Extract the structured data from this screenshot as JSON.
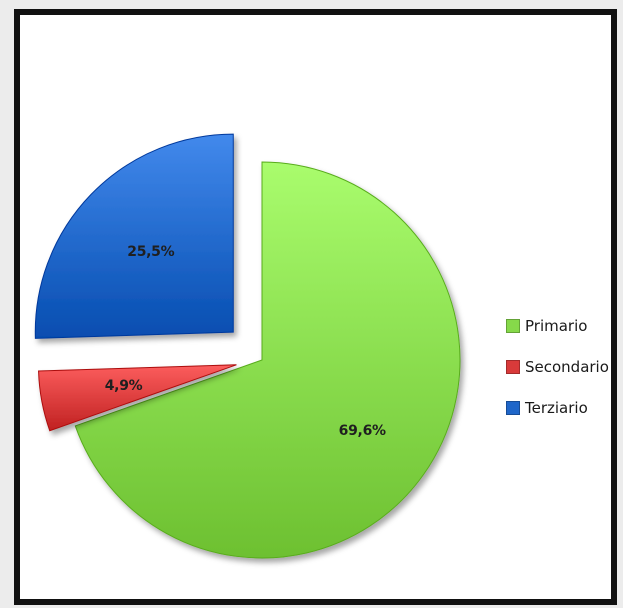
{
  "chart_data": {
    "type": "pie",
    "exploded": true,
    "legend_position": "right",
    "slices": [
      {
        "name": "Primario",
        "value": 69.6,
        "label": "69,6%",
        "color": "#86d94a"
      },
      {
        "name": "Secondario",
        "value": 4.9,
        "label": "4,9%",
        "color": "#d93a3a"
      },
      {
        "name": "Terziario",
        "value": 25.5,
        "label": "25,5%",
        "color": "#1f66c9"
      }
    ]
  }
}
